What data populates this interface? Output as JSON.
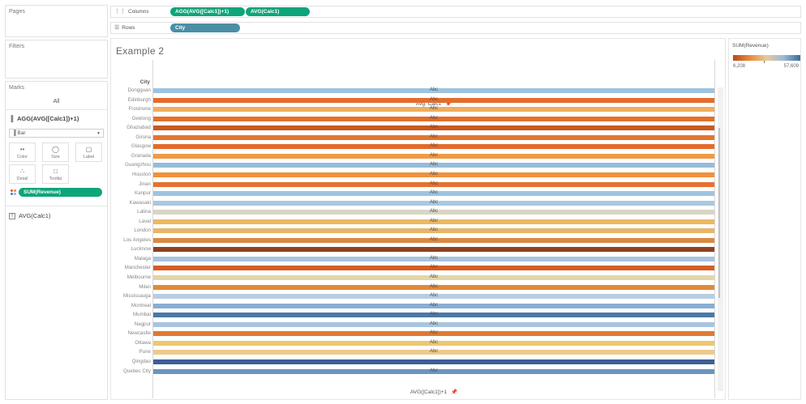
{
  "panels": {
    "pages": "Pages",
    "filters": "Filters",
    "marks": "Marks",
    "all": "All"
  },
  "marks": {
    "measure": "AGG(AVG([Calc1])+1)",
    "mark_type": "Bar",
    "buttons": [
      {
        "label": "Color",
        "icon": "color-dots-icon"
      },
      {
        "label": "Size",
        "icon": "size-icon"
      },
      {
        "label": "Label",
        "icon": "label-icon"
      },
      {
        "label": "Detail",
        "icon": "detail-icon"
      },
      {
        "label": "Tooltip",
        "icon": "tooltip-icon"
      }
    ],
    "color_pill": "SUM(Revenue)",
    "label_field": "AVG(Calc1)"
  },
  "shelves": {
    "columns_label": "Columns",
    "columns_pills": [
      "AGG(AVG([Calc1])+1)",
      "AVG(Calc1)"
    ],
    "rows_label": "Rows",
    "rows_pill": "City"
  },
  "sheet": {
    "title": "Example 2",
    "col_header": "Avg. Calc1",
    "row_header": "City",
    "footer_axis": "AVG([Calc1])+1"
  },
  "legend": {
    "title": "SUM(Revenue)",
    "min": "6,208",
    "max": "57,609",
    "colors": [
      "#b94a1c",
      "#e98a3c",
      "#e8c99a",
      "#9cbad4",
      "#3a6b9c"
    ]
  },
  "chart_data": {
    "type": "bar",
    "row_label_mark": "Abc",
    "rows": [
      {
        "city": "Dongguan",
        "color": "#9dc3df",
        "label": "Abc"
      },
      {
        "city": "Edinburgh",
        "color": "#e36d2c",
        "label": "Abc"
      },
      {
        "city": "Frosinone",
        "color": "#f0ae5e",
        "label": "Abc"
      },
      {
        "city": "Geelong",
        "color": "#e36f2c",
        "label": "Abc"
      },
      {
        "city": "Ghaziabad",
        "color": "#c9581f",
        "label": "Abc"
      },
      {
        "city": "Girona",
        "color": "#e2762f",
        "label": "Abc"
      },
      {
        "city": "Glasgow",
        "color": "#e36b2a",
        "label": "Abc"
      },
      {
        "city": "Granada",
        "color": "#ef9a45",
        "label": "Abc"
      },
      {
        "city": "Guangzhou",
        "color": "#95bcdb",
        "label": "Abc"
      },
      {
        "city": "Houston",
        "color": "#f0913c",
        "label": "Abc"
      },
      {
        "city": "Jinan",
        "color": "#e5722d",
        "label": "Abc"
      },
      {
        "city": "Kanpur",
        "color": "#9fc3df",
        "label": "Abc"
      },
      {
        "city": "Kawasaki",
        "color": "#a9c9e1",
        "label": "Abc"
      },
      {
        "city": "Latina",
        "color": "#d9d5c4",
        "label": "Abc"
      },
      {
        "city": "Laval",
        "color": "#ecb862",
        "label": "Abc"
      },
      {
        "city": "London",
        "color": "#e5b769",
        "label": "Abc"
      },
      {
        "city": "Los Angeles",
        "color": "#d98a42",
        "label": "Abc"
      },
      {
        "city": "Lucknow",
        "color": "#8d4220",
        "label": ""
      },
      {
        "city": "Malaga",
        "color": "#a7c4df",
        "label": "Abc"
      },
      {
        "city": "Manchester",
        "color": "#d65e22",
        "label": "Abc"
      },
      {
        "city": "Melbourne",
        "color": "#e3d6a6",
        "label": "Abc"
      },
      {
        "city": "Milan",
        "color": "#e08a3b",
        "label": "Abc"
      },
      {
        "city": "Mississauga",
        "color": "#b7cde3",
        "label": "Abc"
      },
      {
        "city": "Montreal",
        "color": "#88aed4",
        "label": "Abc"
      },
      {
        "city": "Mumbai",
        "color": "#4b77a8",
        "label": "Abc"
      },
      {
        "city": "Nagpur",
        "color": "#a8c5de",
        "label": "Abc"
      },
      {
        "city": "Newcastle",
        "color": "#de7a33",
        "label": "Abc"
      },
      {
        "city": "Ottawa",
        "color": "#edc772",
        "label": "Abc"
      },
      {
        "city": "Pune",
        "color": "#efc98c",
        "label": "Abc"
      },
      {
        "city": "Qingdao",
        "color": "#3c5f95",
        "label": ""
      },
      {
        "city": "Quebec City",
        "color": "#6d94c0",
        "label": "Abc"
      }
    ]
  }
}
